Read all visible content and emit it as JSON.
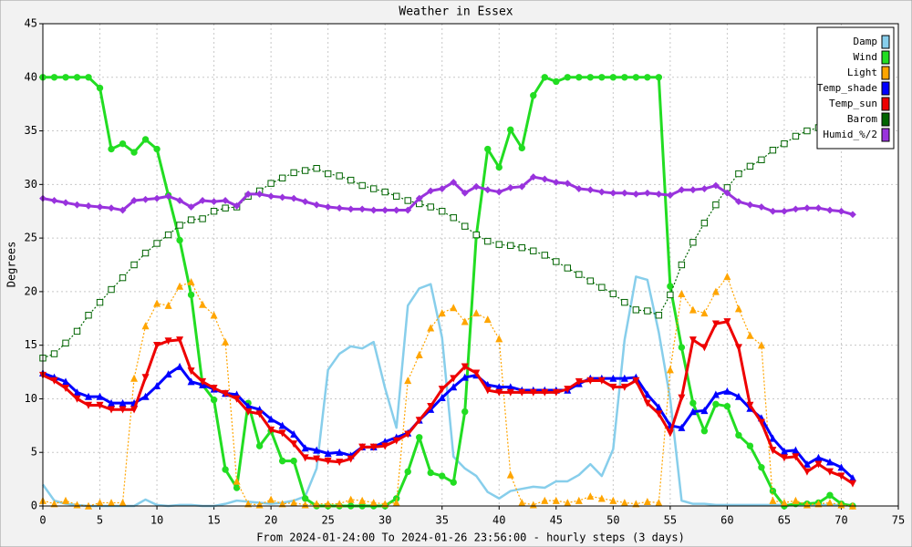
{
  "chart_data": {
    "type": "line",
    "title": "Weather in Essex",
    "xlabel": "From 2024-01-24:00 To 2024-01-26 23:56:00 - hourly steps (3 days)",
    "ylabel": "Degrees",
    "x": [
      0,
      1,
      2,
      3,
      4,
      5,
      6,
      7,
      8,
      9,
      10,
      11,
      12,
      13,
      14,
      15,
      16,
      17,
      18,
      19,
      20,
      21,
      22,
      23,
      24,
      25,
      26,
      27,
      28,
      29,
      30,
      31,
      32,
      33,
      34,
      35,
      36,
      37,
      38,
      39,
      40,
      41,
      42,
      43,
      44,
      45,
      46,
      47,
      48,
      49,
      50,
      51,
      52,
      53,
      54,
      55,
      56,
      57,
      58,
      59,
      60,
      61,
      62,
      63,
      64,
      65,
      66,
      67,
      68,
      69,
      70,
      71
    ],
    "xlim": [
      0,
      75
    ],
    "xticks": [
      0,
      5,
      10,
      15,
      20,
      25,
      30,
      35,
      40,
      45,
      50,
      55,
      60,
      65,
      70,
      75
    ],
    "ylim": [
      0,
      45
    ],
    "yticks": [
      0,
      5,
      10,
      15,
      20,
      25,
      30,
      35,
      40,
      45
    ],
    "grid": true,
    "legend": "top-right",
    "series": [
      {
        "name": "Damp",
        "color": "#87ceeb",
        "width": 2.5,
        "marker": "none",
        "values": [
          2,
          0.5,
          0.2,
          0.1,
          0,
          0,
          0,
          0,
          0,
          0.6,
          0.1,
          0,
          0.1,
          0.1,
          0,
          0,
          0.2,
          0.5,
          0.4,
          0.3,
          0.2,
          0.3,
          0.5,
          0.9,
          3.5,
          12.7,
          14.2,
          14.9,
          14.7,
          15.3,
          11,
          7.3,
          18.7,
          20.3,
          20.7,
          15.7,
          4.6,
          3.5,
          2.8,
          1.3,
          0.7,
          1.4,
          1.6,
          1.8,
          1.7,
          2.3,
          2.3,
          2.9,
          3.9,
          2.8,
          5.3,
          15.5,
          21.4,
          21.1,
          16.2,
          10,
          0.5,
          0.2,
          0.2,
          0.1,
          0.1,
          0.1,
          0.1,
          0.1,
          0.1,
          0.1,
          0.1,
          0.1,
          0.1,
          0.1,
          0.1,
          0.1
        ]
      },
      {
        "name": "Wind",
        "color": "#22dd22",
        "width": 3,
        "marker": "circle",
        "values": [
          40,
          40,
          40,
          40,
          40,
          39,
          33.3,
          33.8,
          33,
          34.2,
          33.3,
          29,
          24.8,
          19.7,
          11.3,
          9.9,
          3.4,
          1.7,
          9.6,
          5.6,
          7,
          4.2,
          4.2,
          0.7,
          0,
          0,
          0,
          0,
          0,
          0,
          0,
          0.7,
          3.2,
          6.4,
          3.1,
          2.8,
          2.2,
          8.8,
          25.2,
          33.3,
          31.6,
          35.1,
          33.4,
          38.3,
          40,
          39.6,
          40,
          40,
          40,
          40,
          40,
          40,
          40,
          40,
          40,
          20.5,
          14.8,
          9.6,
          7,
          9.5,
          9.3,
          6.6,
          5.6,
          3.6,
          1.4,
          0,
          0.2,
          0.2,
          0.3,
          1,
          0.2,
          0
        ]
      },
      {
        "name": "Light",
        "color": "#ffa500",
        "width": 1.2,
        "dash": "2,2",
        "marker": "triangle",
        "values": [
          0.5,
          0.2,
          0.5,
          0.1,
          0,
          0.3,
          0.3,
          0.3,
          11.9,
          16.8,
          18.9,
          18.7,
          20.5,
          20.9,
          18.8,
          17.8,
          15.3,
          2.3,
          0.2,
          0.1,
          0.6,
          0.2,
          0.3,
          0.1,
          0.2,
          0.2,
          0.2,
          0.6,
          0.5,
          0.3,
          0.2,
          0.3,
          11.7,
          14.1,
          16.6,
          18,
          18.5,
          17.2,
          18,
          17.4,
          15.6,
          2.9,
          0.3,
          0.1,
          0.5,
          0.5,
          0.3,
          0.5,
          0.9,
          0.7,
          0.5,
          0.3,
          0.2,
          0.4,
          0.3,
          12.7,
          19.8,
          18.3,
          18,
          20,
          21.4,
          18.4,
          15.9,
          15,
          0.5,
          0.3,
          0.5,
          0.1,
          0.2,
          0.3,
          0.1,
          0
        ]
      },
      {
        "name": "Temp_shade",
        "color": "#0000ff",
        "width": 3,
        "marker": "triangle",
        "values": [
          12.4,
          12,
          11.6,
          10.6,
          10.2,
          10.2,
          9.6,
          9.6,
          9.6,
          10.2,
          11.2,
          12.3,
          13,
          11.6,
          11.3,
          10.9,
          10.5,
          10.4,
          9.3,
          9,
          8.1,
          7.5,
          6.7,
          5.4,
          5.2,
          4.9,
          5,
          4.7,
          5.5,
          5.5,
          6,
          6.4,
          6.8,
          8,
          9,
          10.1,
          11.1,
          12,
          12.2,
          11.3,
          11.1,
          11.1,
          10.8,
          10.8,
          10.8,
          10.8,
          10.8,
          11.4,
          11.9,
          11.9,
          11.9,
          11.9,
          12,
          10.4,
          9.2,
          7.5,
          7.3,
          8.8,
          8.9,
          10.4,
          10.7,
          10.2,
          9.1,
          8.2,
          6.3,
          5.1,
          5.2,
          3.9,
          4.5,
          4.1,
          3.6,
          2.6
        ]
      },
      {
        "name": "Temp_sun",
        "color": "#ee0000",
        "width": 3,
        "marker": "triangle-down",
        "values": [
          12.2,
          11.7,
          11,
          10,
          9.4,
          9.4,
          9,
          9,
          9,
          12,
          15,
          15.4,
          15.5,
          12.6,
          11.6,
          11,
          10.5,
          10,
          8.8,
          8.6,
          7.1,
          6.8,
          5.8,
          4.5,
          4.4,
          4.2,
          4.1,
          4.4,
          5.5,
          5.5,
          5.6,
          6.1,
          6.7,
          8,
          9.3,
          10.9,
          11.9,
          13,
          12.4,
          10.8,
          10.6,
          10.6,
          10.6,
          10.6,
          10.6,
          10.6,
          10.9,
          11.6,
          11.7,
          11.7,
          11.1,
          11.1,
          11.7,
          9.6,
          8.6,
          6.8,
          10.1,
          15.5,
          14.8,
          17,
          17.2,
          14.8,
          9.4,
          7.8,
          5.2,
          4.5,
          4.6,
          3.2,
          3.9,
          3.2,
          2.8,
          2.1
        ]
      },
      {
        "name": "Barom",
        "color": "#006400",
        "width": 1.2,
        "dash": "2,2",
        "marker": "square",
        "values": [
          13.8,
          14.2,
          15.2,
          16.3,
          17.8,
          19,
          20.2,
          21.3,
          22.5,
          23.6,
          24.5,
          25.3,
          26.2,
          26.7,
          26.8,
          27.5,
          27.8,
          27.9,
          28.9,
          29.4,
          30.1,
          30.6,
          31.1,
          31.3,
          31.5,
          31,
          30.8,
          30.4,
          29.9,
          29.6,
          29.3,
          28.9,
          28.5,
          28.2,
          27.9,
          27.5,
          26.9,
          26.1,
          25.3,
          24.7,
          24.4,
          24.3,
          24.1,
          23.8,
          23.4,
          22.8,
          22.2,
          21.6,
          21,
          20.4,
          19.8,
          19,
          18.3,
          18.2,
          17.8,
          19.7,
          22.5,
          24.6,
          26.4,
          28.1,
          29.7,
          31,
          31.7,
          32.3,
          33.2,
          33.8,
          34.5,
          35,
          35.3,
          35.5,
          35.6,
          35.7
        ]
      },
      {
        "name": "Humid_%/2",
        "color": "#9933dd",
        "width": 3,
        "marker": "diamond",
        "values": [
          28.7,
          28.5,
          28.3,
          28.1,
          28,
          27.9,
          27.8,
          27.6,
          28.5,
          28.6,
          28.7,
          28.9,
          28.5,
          27.9,
          28.5,
          28.4,
          28.5,
          28,
          29.1,
          29.1,
          28.9,
          28.8,
          28.7,
          28.4,
          28.1,
          27.9,
          27.8,
          27.7,
          27.7,
          27.6,
          27.6,
          27.6,
          27.6,
          28.7,
          29.4,
          29.6,
          30.2,
          29.2,
          29.8,
          29.5,
          29.3,
          29.7,
          29.8,
          30.7,
          30.5,
          30.2,
          30.1,
          29.6,
          29.5,
          29.3,
          29.2,
          29.2,
          29.1,
          29.2,
          29.1,
          29,
          29.5,
          29.5,
          29.6,
          29.9,
          29.2,
          28.4,
          28.1,
          27.9,
          27.5,
          27.5,
          27.7,
          27.8,
          27.8,
          27.6,
          27.5,
          27.2
        ]
      }
    ]
  }
}
